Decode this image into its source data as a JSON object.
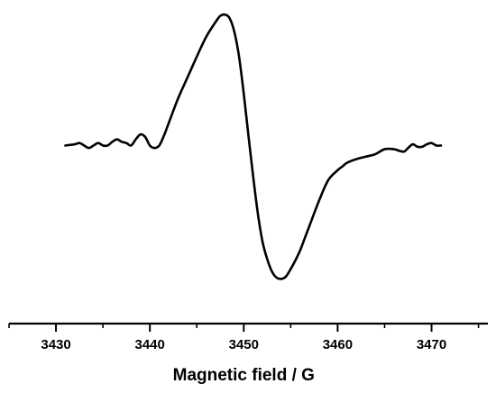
{
  "chart_data": {
    "type": "line",
    "title": "",
    "xlabel": "Magnetic field / G",
    "ylabel": "",
    "xlim": [
      3425,
      3476
    ],
    "ylim": [
      -1.15,
      1.12
    ],
    "x_ticks": [
      3430,
      3440,
      3450,
      3460,
      3470
    ],
    "x_tick_labels": [
      "3430",
      "3440",
      "3450",
      "3460",
      "3470"
    ],
    "x_minor_step": 5,
    "y_axis_visible": false,
    "grid": false,
    "legend": "none",
    "series": [
      {
        "x": [
          3431.0,
          3432.0,
          3432.5,
          3433.0,
          3433.5,
          3434.0,
          3434.5,
          3435.0,
          3435.5,
          3436.0,
          3436.5,
          3437.0,
          3437.5,
          3438.0,
          3438.5,
          3439.0,
          3439.5,
          3440.0,
          3440.5,
          3441.0,
          3441.5,
          3442.0,
          3443.0,
          3444.0,
          3445.0,
          3446.0,
          3447.0,
          3447.5,
          3448.0,
          3448.5,
          3449.0,
          3449.5,
          3450.0,
          3450.5,
          3451.0,
          3451.5,
          3452.0,
          3452.5,
          3453.0,
          3453.5,
          3454.0,
          3454.5,
          3455.0,
          3455.5,
          3456.0,
          3456.5,
          3457.0,
          3458.0,
          3459.0,
          3460.0,
          3460.5,
          3461.0,
          3462.0,
          3463.0,
          3464.0,
          3465.0,
          3466.0,
          3467.0,
          3467.5,
          3468.0,
          3468.5,
          3469.0,
          3469.5,
          3470.0,
          3470.5,
          3471.0
        ],
        "y": [
          0.0,
          0.01,
          0.02,
          0.0,
          -0.02,
          0.0,
          0.02,
          0.0,
          0.0,
          0.03,
          0.05,
          0.03,
          0.02,
          0.0,
          0.05,
          0.09,
          0.07,
          0.0,
          -0.02,
          0.0,
          0.08,
          0.18,
          0.38,
          0.55,
          0.72,
          0.88,
          1.0,
          1.05,
          1.06,
          1.03,
          0.92,
          0.72,
          0.42,
          0.08,
          -0.25,
          -0.55,
          -0.78,
          -0.92,
          -1.02,
          -1.07,
          -1.08,
          -1.06,
          -1.0,
          -0.93,
          -0.85,
          -0.75,
          -0.65,
          -0.45,
          -0.28,
          -0.2,
          -0.17,
          -0.14,
          -0.11,
          -0.09,
          -0.07,
          -0.03,
          -0.03,
          -0.05,
          -0.02,
          0.01,
          -0.01,
          -0.01,
          0.01,
          0.02,
          0.0,
          0.0
        ]
      }
    ]
  }
}
